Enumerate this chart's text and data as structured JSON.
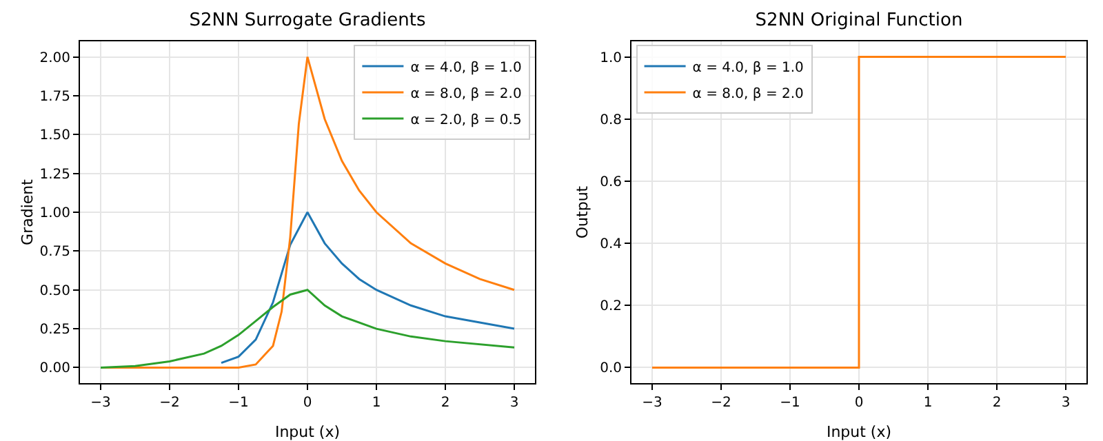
{
  "chart_data": [
    {
      "type": "line",
      "title": "S2NN Surrogate Gradients",
      "xlabel": "Input (x)",
      "ylabel": "Gradient",
      "xlim": [
        -3.3,
        3.3
      ],
      "ylim": [
        -0.1,
        2.1
      ],
      "xticks": [
        {
          "value": -3,
          "label": "−3"
        },
        {
          "value": -2,
          "label": "−2"
        },
        {
          "value": -1,
          "label": "−1"
        },
        0,
        1,
        2,
        3
      ],
      "yticks": [
        {
          "value": 0,
          "label": "0.00"
        },
        0.25,
        {
          "value": 0.5,
          "label": "0.50"
        },
        0.75,
        {
          "value": 1,
          "label": "1.00"
        },
        1.25,
        {
          "value": 1.5,
          "label": "1.50"
        },
        1.75,
        {
          "value": 2,
          "label": "2.00"
        }
      ],
      "grid": true,
      "legend": "top right",
      "marker": "none",
      "line_style": "solid",
      "series": [
        {
          "name": "α = 4.0, β = 1.0",
          "color": "#1f77b4",
          "x": [
            -1.25,
            -1,
            -0.75,
            -0.5,
            -0.25,
            0,
            0.25,
            0.5,
            0.75,
            1,
            1.5,
            2,
            2.5,
            3
          ],
          "values": [
            0.03,
            0.07,
            0.18,
            0.42,
            0.79,
            1,
            0.8,
            0.67,
            0.57,
            0.5,
            0.4,
            0.33,
            0.29,
            0.25
          ]
        },
        {
          "name": "α = 8.0, β = 2.0",
          "color": "#ff7f0e",
          "x": [
            -3,
            -2,
            -1.5,
            -1,
            -0.75,
            -0.5,
            -0.375,
            -0.25,
            -0.125,
            0,
            0.25,
            0.5,
            0.75,
            1,
            1.5,
            2,
            2.5,
            3
          ],
          "values": [
            0,
            0,
            0,
            0,
            0.02,
            0.14,
            0.36,
            0.84,
            1.57,
            2,
            1.6,
            1.33,
            1.14,
            1,
            0.8,
            0.67,
            0.57,
            0.5
          ]
        },
        {
          "name": "α = 2.0, β = 0.5",
          "color": "#2ca02c",
          "x": [
            -3,
            -2.5,
            -2,
            -1.5,
            -1.25,
            -1,
            -0.75,
            -0.5,
            -0.25,
            0,
            0.25,
            0.5,
            1,
            1.5,
            2,
            3
          ],
          "values": [
            0,
            0.01,
            0.04,
            0.09,
            0.14,
            0.21,
            0.3,
            0.39,
            0.47,
            0.5,
            0.4,
            0.33,
            0.25,
            0.2,
            0.17,
            0.13
          ]
        }
      ]
    },
    {
      "type": "line",
      "title": "S2NN Original Function",
      "xlabel": "Input (x)",
      "ylabel": "Output",
      "xlim": [
        -3.3,
        3.3
      ],
      "ylim": [
        -0.05,
        1.05
      ],
      "xticks": [
        {
          "value": -3,
          "label": "−3"
        },
        {
          "value": -2,
          "label": "−2"
        },
        {
          "value": -1,
          "label": "−1"
        },
        0,
        1,
        2,
        3
      ],
      "yticks": [
        {
          "value": 0,
          "label": "0.0"
        },
        0.2,
        0.4,
        0.6,
        0.8,
        {
          "value": 1,
          "label": "1.0"
        }
      ],
      "grid": true,
      "legend": "top left",
      "marker": "none",
      "line_style": "solid",
      "series": [
        {
          "name": "α = 4.0, β = 1.0",
          "color": "#1f77b4",
          "line_style": "solid"
        },
        {
          "name": "α = 8.0, β = 2.0",
          "color": "#ff7f0e",
          "x": [
            -3,
            0,
            0,
            3
          ],
          "values": [
            0,
            0,
            1,
            1
          ]
        }
      ]
    }
  ]
}
